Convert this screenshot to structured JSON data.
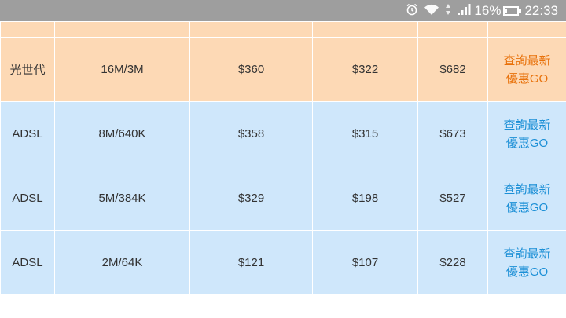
{
  "status_bar": {
    "alarm_icon": "alarm-clock-icon",
    "wifi_icon": "wifi-icon",
    "signal_icon": "cell-signal-icon",
    "battery_percent": "16%",
    "time": "22:33"
  },
  "table": {
    "rows": [
      {
        "type": "光世代",
        "speed": "16M/3M",
        "price1": "$360",
        "price2": "$322",
        "total": "$682",
        "promo_line1": "查詢最新",
        "promo_line2": "優惠GO"
      },
      {
        "type": "ADSL",
        "speed": "8M/640K",
        "price1": "$358",
        "price2": "$315",
        "total": "$673",
        "promo_line1": "查詢最新",
        "promo_line2": "優惠GO"
      },
      {
        "type": "ADSL",
        "speed": "5M/384K",
        "price1": "$329",
        "price2": "$198",
        "total": "$527",
        "promo_line1": "查詢最新",
        "promo_line2": "優惠GO"
      },
      {
        "type": "ADSL",
        "speed": "2M/64K",
        "price1": "$121",
        "price2": "$107",
        "total": "$228",
        "promo_line1": "查詢最新",
        "promo_line2": "優惠GO"
      }
    ]
  },
  "colors": {
    "fiber_row_bg": "#fdd9b5",
    "adsl_row_bg": "#cfe7fb",
    "fiber_promo": "#e8710a",
    "adsl_promo": "#1b8fd6"
  }
}
